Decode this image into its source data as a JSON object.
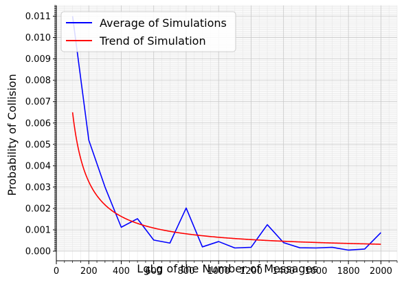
{
  "chart_data": {
    "type": "line",
    "title": "",
    "xlabel": "LgLg of the Number of Messages",
    "ylabel": "Probability of Collision",
    "xlim": [
      0,
      2100
    ],
    "ylim": [
      -0.00045,
      0.0115
    ],
    "xticks": [
      0,
      200,
      400,
      600,
      800,
      1000,
      1200,
      1400,
      1600,
      1800,
      2000
    ],
    "yticks": [
      0.0,
      0.001,
      0.002,
      0.003,
      0.004,
      0.005,
      0.006,
      0.007,
      0.008,
      0.009,
      0.01,
      0.011
    ],
    "xtick_labels": [
      "0",
      "200",
      "400",
      "600",
      "800",
      "1000",
      "1200",
      "1400",
      "1600",
      "1800",
      "2000"
    ],
    "ytick_labels": [
      "0.000",
      "0.001",
      "0.002",
      "0.003",
      "0.004",
      "0.005",
      "0.006",
      "0.007",
      "0.008",
      "0.009",
      "0.010",
      "0.011"
    ],
    "grid": true,
    "minor_grid": true,
    "legend_position": "top-left",
    "series": [
      {
        "name": "Average of Simulations",
        "color": "#0000ff",
        "x": [
          100,
          200,
          300,
          400,
          500,
          600,
          700,
          800,
          900,
          1000,
          1100,
          1200,
          1300,
          1400,
          1500,
          1600,
          1700,
          1800,
          1900,
          2000
        ],
        "y": [
          0.011,
          0.0052,
          0.003,
          0.00112,
          0.00152,
          0.00052,
          0.00038,
          0.00202,
          0.0002,
          0.00045,
          0.00015,
          0.00018,
          0.00124,
          0.0004,
          0.00016,
          0.00015,
          0.00018,
          5e-05,
          0.0001,
          0.00087
        ]
      },
      {
        "name": "Trend of Simulation",
        "color": "#ff0000",
        "function": "power",
        "coefficient": 0.65,
        "exponent": -1,
        "x_start": 100,
        "x_end": 2000
      }
    ]
  }
}
